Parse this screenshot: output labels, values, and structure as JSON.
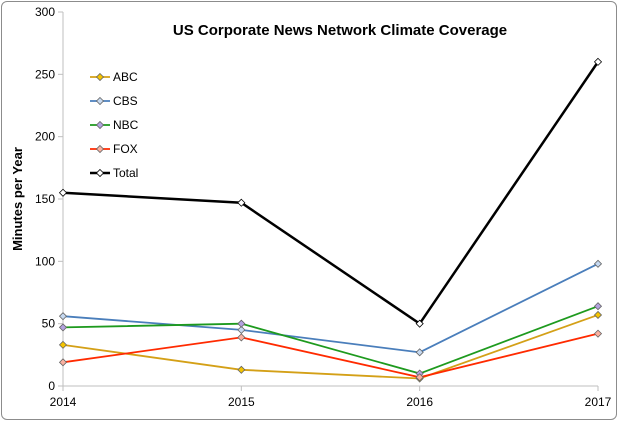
{
  "chart_data": {
    "type": "line",
    "title": "US Corporate News Network Climate Coverage",
    "xlabel": "",
    "ylabel": "Minutes per Year",
    "x": [
      "2014",
      "2015",
      "2016",
      "2017"
    ],
    "ylim": [
      0,
      300
    ],
    "yticks": [
      0,
      50,
      100,
      150,
      200,
      250,
      300
    ],
    "grid": false,
    "legend": "top-left",
    "series": [
      {
        "name": "ABC",
        "color": "#d4a017",
        "marker": "#f5c400",
        "values": [
          33,
          13,
          6,
          57
        ]
      },
      {
        "name": "CBS",
        "color": "#4a7ebb",
        "marker": "#c6d9f1",
        "values": [
          56,
          45,
          27,
          98
        ]
      },
      {
        "name": "NBC",
        "color": "#1e9a1e",
        "marker": "#b3a2e0",
        "values": [
          47,
          50,
          10,
          64
        ]
      },
      {
        "name": "FOX",
        "color": "#ff2a00",
        "marker": "#f9b1a1",
        "values": [
          19,
          39,
          7,
          42
        ]
      },
      {
        "name": "Total",
        "color": "#000000",
        "marker": "#ffffff",
        "values": [
          155,
          147,
          50,
          260
        ]
      }
    ]
  }
}
